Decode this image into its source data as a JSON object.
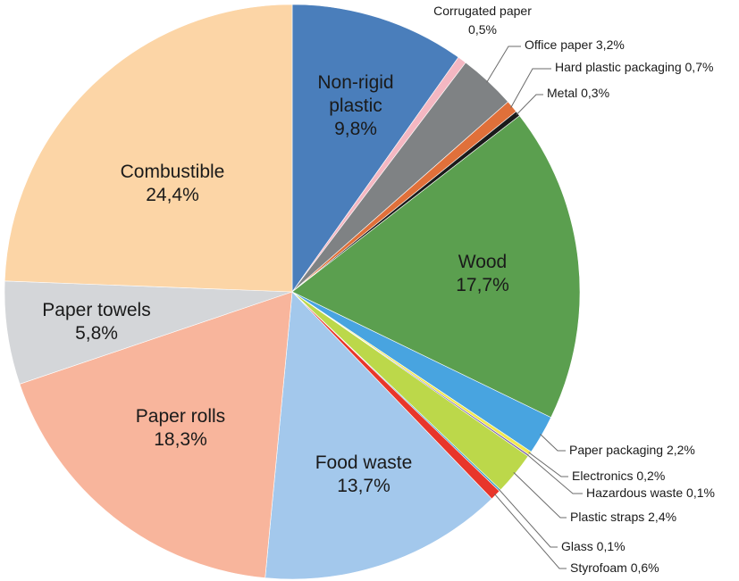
{
  "chart_data": {
    "type": "pie",
    "title": "",
    "start": "top",
    "direction": "clockwise",
    "slices": [
      {
        "name": "Non-rigid plastic",
        "value": 9.8,
        "display": [
          "Non-rigid",
          "plastic",
          "9,8%"
        ],
        "color": "#4a7ebb",
        "label": "inside"
      },
      {
        "name": "Corrugated paper",
        "value": 0.5,
        "display": [
          "Corrugated paper",
          "0,5%"
        ],
        "color": "#f4b7c2",
        "label": "outside"
      },
      {
        "name": "Office paper",
        "value": 3.2,
        "display": [
          "Office paper 3,2%"
        ],
        "color": "#7f8284",
        "label": "outside"
      },
      {
        "name": "Hard plastic packaging",
        "value": 0.7,
        "display": [
          "Hard plastic packaging 0,7%"
        ],
        "color": "#e0703a",
        "label": "outside"
      },
      {
        "name": "Metal",
        "value": 0.3,
        "display": [
          "Metal 0,3%"
        ],
        "color": "#1a1a1a",
        "label": "outside"
      },
      {
        "name": "Wood",
        "value": 17.7,
        "display": [
          "Wood",
          "17,7%"
        ],
        "color": "#5b9f4f",
        "label": "inside"
      },
      {
        "name": "Paper packaging",
        "value": 2.2,
        "display": [
          "Paper packaging 2,2%"
        ],
        "color": "#48a4e0",
        "label": "outside"
      },
      {
        "name": "Electronics",
        "value": 0.2,
        "display": [
          "Electronics 0,2%"
        ],
        "color": "#f2e94e",
        "label": "outside"
      },
      {
        "name": "Hazardous waste",
        "value": 0.1,
        "display": [
          "Hazardous waste 0,1%"
        ],
        "color": "#7c64a6",
        "label": "outside"
      },
      {
        "name": "Plastic straps",
        "value": 2.4,
        "display": [
          "Plastic straps 2,4%"
        ],
        "color": "#bcd84a",
        "label": "outside"
      },
      {
        "name": "Glass",
        "value": 0.1,
        "display": [
          "Glass 0,1%"
        ],
        "color": "#2e9bc2",
        "label": "outside"
      },
      {
        "name": "Styrofoam",
        "value": 0.6,
        "display": [
          "Styrofoam 0,6%"
        ],
        "color": "#e8362b",
        "label": "outside"
      },
      {
        "name": "Food waste",
        "value": 13.7,
        "display": [
          "Food waste",
          "13,7%"
        ],
        "color": "#a3c8ec",
        "label": "inside"
      },
      {
        "name": "Paper rolls",
        "value": 18.3,
        "display": [
          "Paper rolls",
          "18,3%"
        ],
        "color": "#f8b59c",
        "label": "inside"
      },
      {
        "name": "Paper towels",
        "value": 5.8,
        "display": [
          "Paper towels",
          "5,8%"
        ],
        "color": "#d4d6d9",
        "label": "inside"
      },
      {
        "name": "Combustible",
        "value": 24.4,
        "display": [
          "Combustible",
          "24,4%"
        ],
        "color": "#fcd5a6",
        "label": "inside"
      }
    ]
  }
}
